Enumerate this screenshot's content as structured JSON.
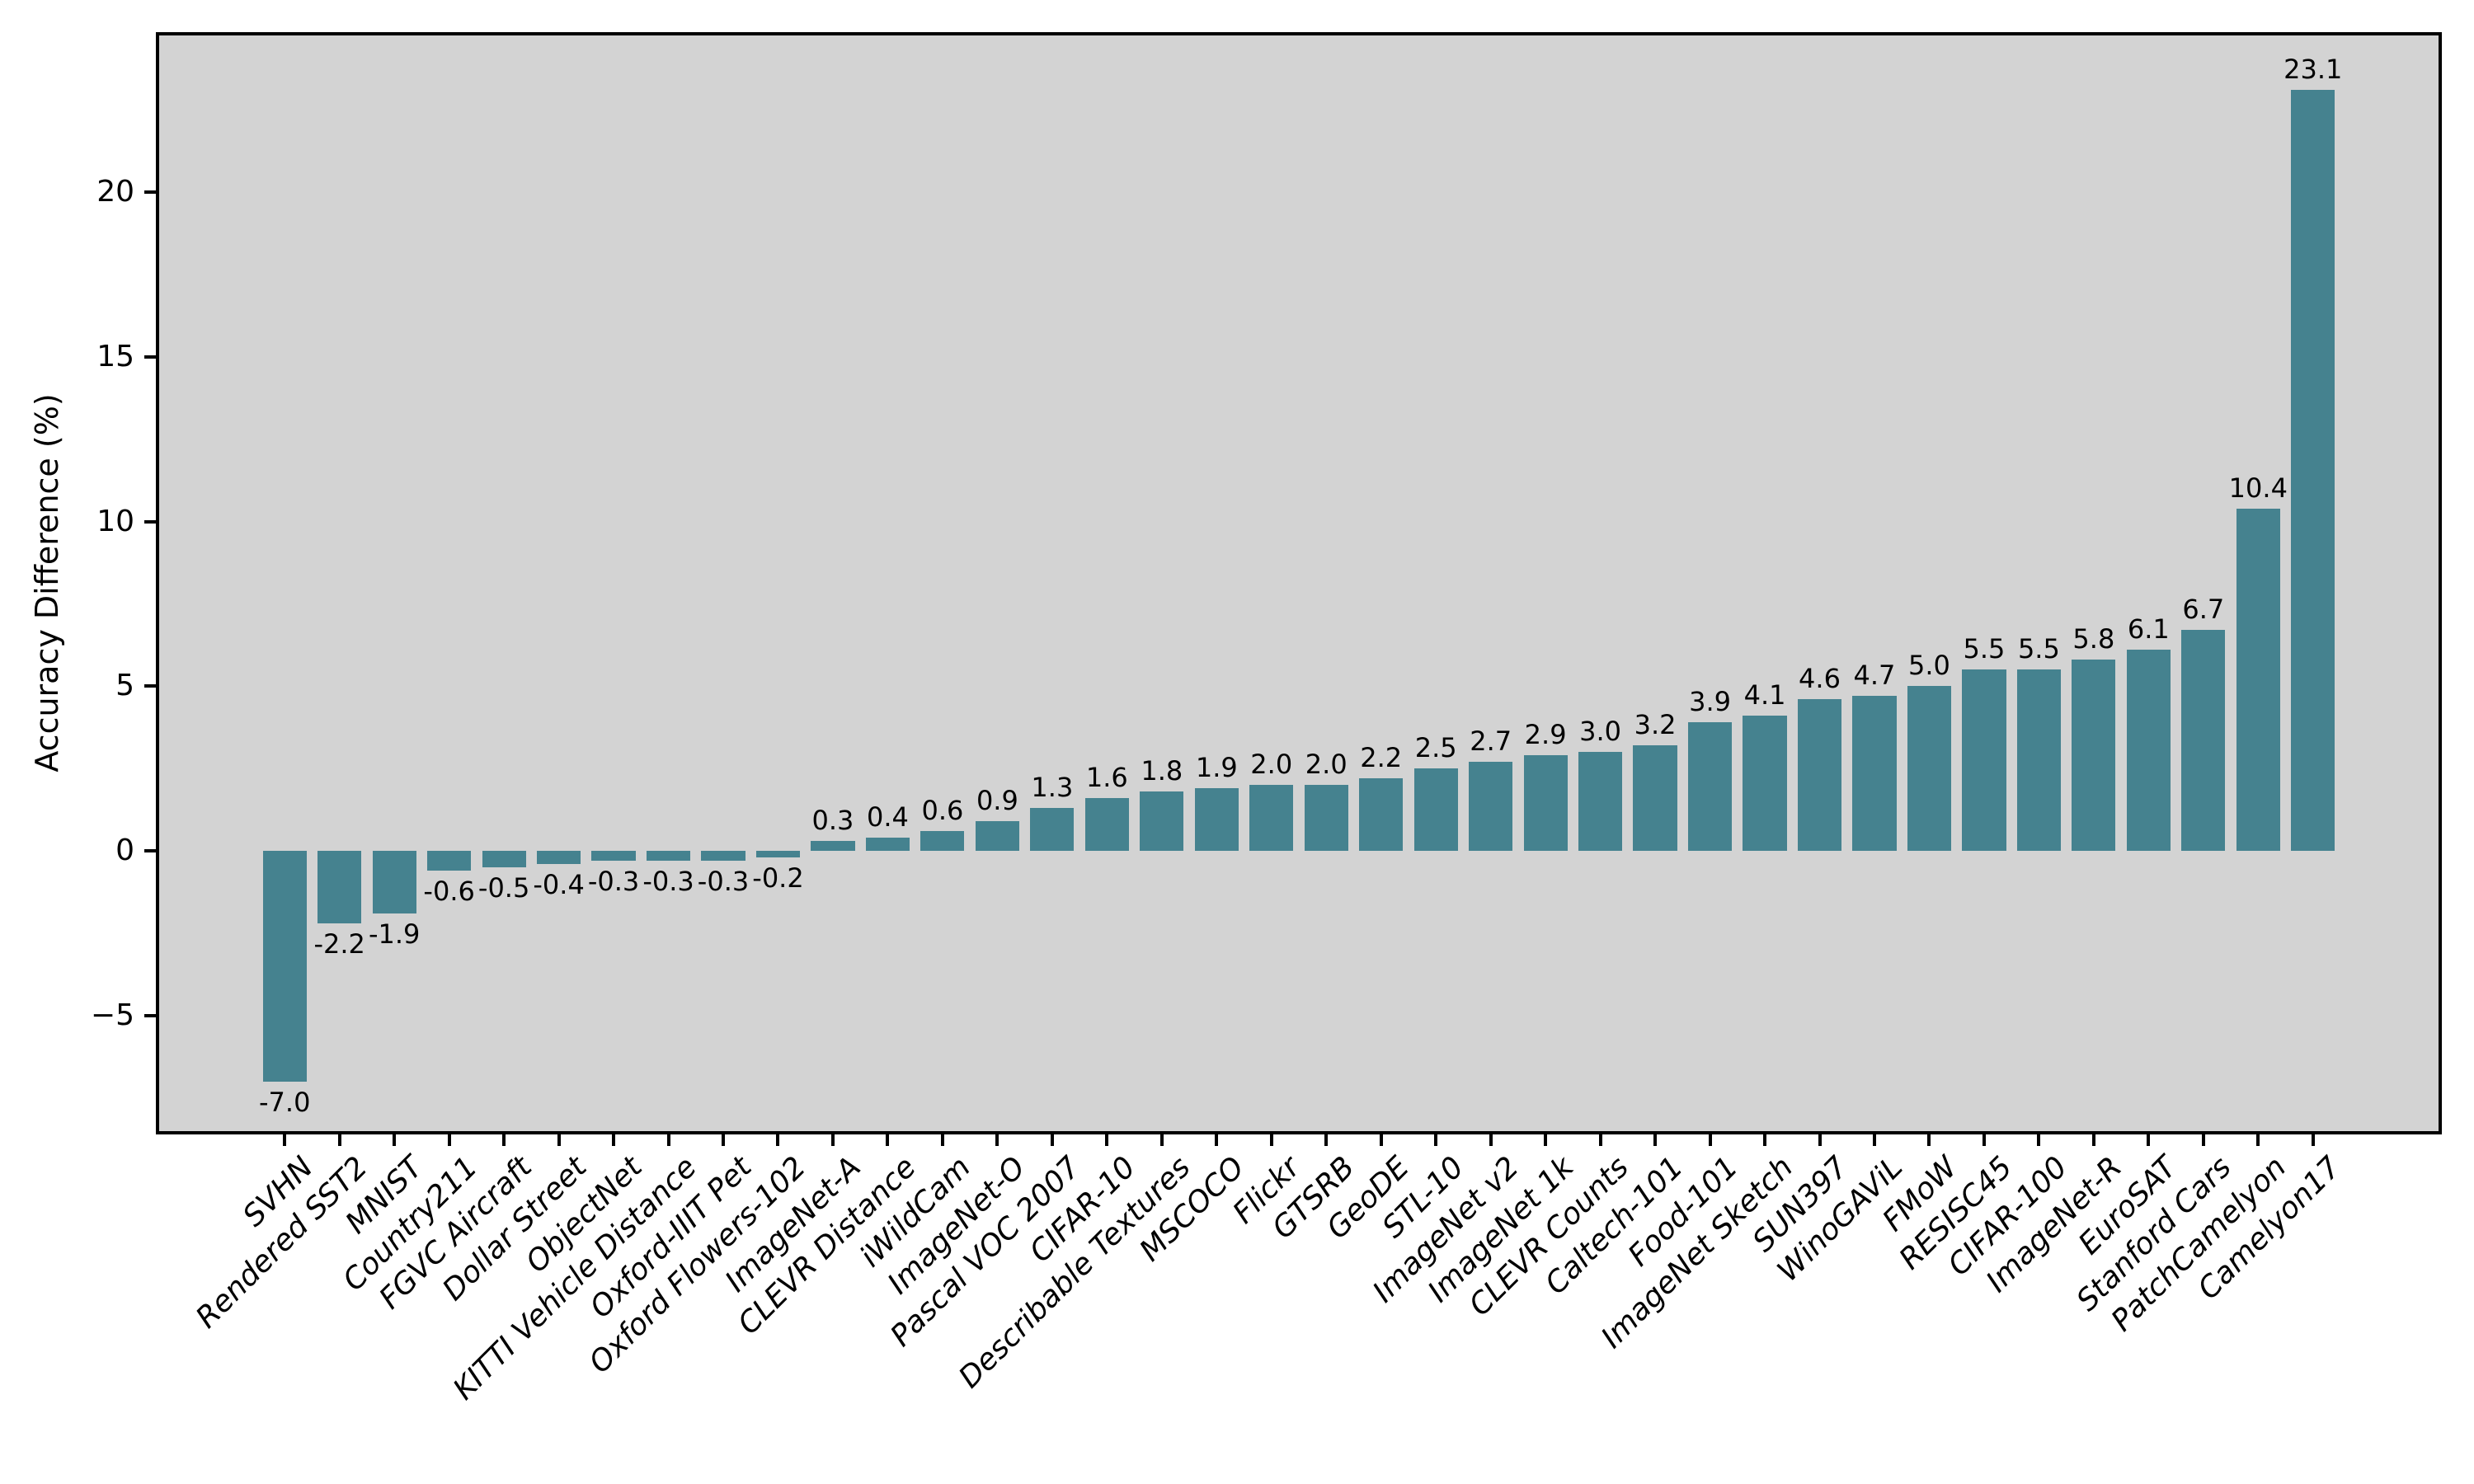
{
  "figure": {
    "background_color": "#ffffff",
    "plot_background_color": "#d3d3d3",
    "axis_color": "#000000",
    "text_color": "#000000"
  },
  "chart_data": {
    "type": "bar",
    "title": "",
    "xlabel": "",
    "ylabel": "Accuracy Difference (%)",
    "grid": false,
    "legend": null,
    "bar_color": "#45828f",
    "ylim": [
      -8.5,
      24.75
    ],
    "y_ticks": [
      {
        "value": 20,
        "label": "20"
      },
      {
        "value": 15,
        "label": "15"
      },
      {
        "value": 10,
        "label": "10"
      },
      {
        "value": 5,
        "label": "5"
      },
      {
        "value": 0,
        "label": "0"
      },
      {
        "value": -5,
        "label": "−5"
      }
    ],
    "categories": [
      "SVHN",
      "Rendered SST2",
      "MNIST",
      "Country211",
      "FGVC Aircraft",
      "Dollar Street",
      "ObjectNet",
      "KITTI Vehicle Distance",
      "Oxford-IIIT Pet",
      "Oxford Flowers-102",
      "ImageNet-A",
      "CLEVR Distance",
      "iWildCam",
      "ImageNet-O",
      "Pascal VOC 2007",
      "CIFAR-10",
      "Describable Textures",
      "MSCOCO",
      "Flickr",
      "GTSRB",
      "GeoDE",
      "STL-10",
      "ImageNet v2",
      "ImageNet 1k",
      "CLEVR Counts",
      "Caltech-101",
      "Food-101",
      "ImageNet Sketch",
      "SUN397",
      "WinoGAViL",
      "FMoW",
      "RESISC45",
      "CIFAR-100",
      "ImageNet-R",
      "EuroSAT",
      "Stanford Cars",
      "PatchCamelyon",
      "Camelyon17"
    ],
    "values": [
      -7.0,
      -2.2,
      -1.9,
      -0.6,
      -0.5,
      -0.4,
      -0.3,
      -0.3,
      -0.3,
      -0.2,
      0.3,
      0.4,
      0.6,
      0.9,
      1.3,
      1.6,
      1.8,
      1.9,
      2.0,
      2.0,
      2.2,
      2.5,
      2.7,
      2.9,
      3.0,
      3.2,
      3.9,
      4.1,
      4.6,
      4.7,
      5.0,
      5.5,
      5.5,
      5.8,
      6.1,
      6.7,
      10.4,
      23.1
    ],
    "bar_labels": [
      "-7.0",
      "-2.2",
      "-1.9",
      "-0.6",
      "-0.5",
      "-0.4",
      "-0.3",
      "-0.3",
      "-0.3",
      "-0.2",
      "0.3",
      "0.4",
      "0.6",
      "0.9",
      "1.3",
      "1.6",
      "1.8",
      "1.9",
      "2.0",
      "2.0",
      "2.2",
      "2.5",
      "2.7",
      "2.9",
      "3.0",
      "3.2",
      "3.9",
      "4.1",
      "4.6",
      "4.7",
      "5.0",
      "5.5",
      "5.5",
      "5.8",
      "6.1",
      "6.7",
      "10.4",
      "23.1"
    ]
  }
}
